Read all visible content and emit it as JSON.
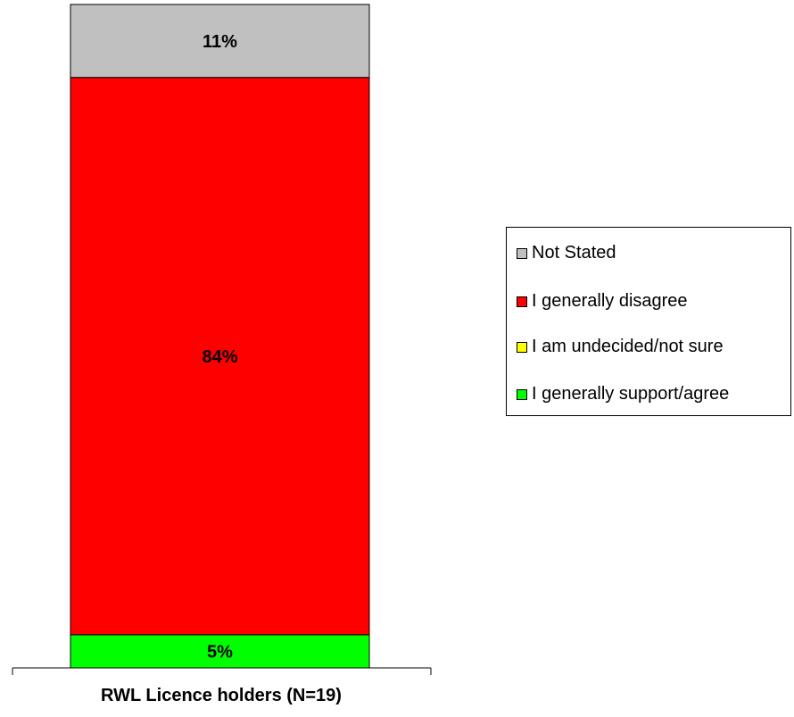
{
  "chart_data": {
    "type": "bar",
    "stacked": true,
    "categories": [
      "RWL Licence holders (N=19)"
    ],
    "series": [
      {
        "name": "I generally support/agree",
        "values": [
          5
        ],
        "label": "5%",
        "color": "#00ff00"
      },
      {
        "name": "I am undecided/not sure",
        "values": [
          0
        ],
        "label": "",
        "color": "#ffff00"
      },
      {
        "name": "I generally disagree",
        "values": [
          84
        ],
        "label": "84%",
        "color": "#ff0000"
      },
      {
        "name": "Not Stated",
        "values": [
          11
        ],
        "label": "11%",
        "color": "#c0c0c0"
      }
    ],
    "ylim": [
      0,
      100
    ],
    "grid": false,
    "legend_position": "right",
    "legend_order": [
      "Not Stated",
      "I generally disagree",
      "I am undecided/not sure",
      "I generally support/agree"
    ],
    "title": "",
    "xlabel": "",
    "ylabel": ""
  }
}
